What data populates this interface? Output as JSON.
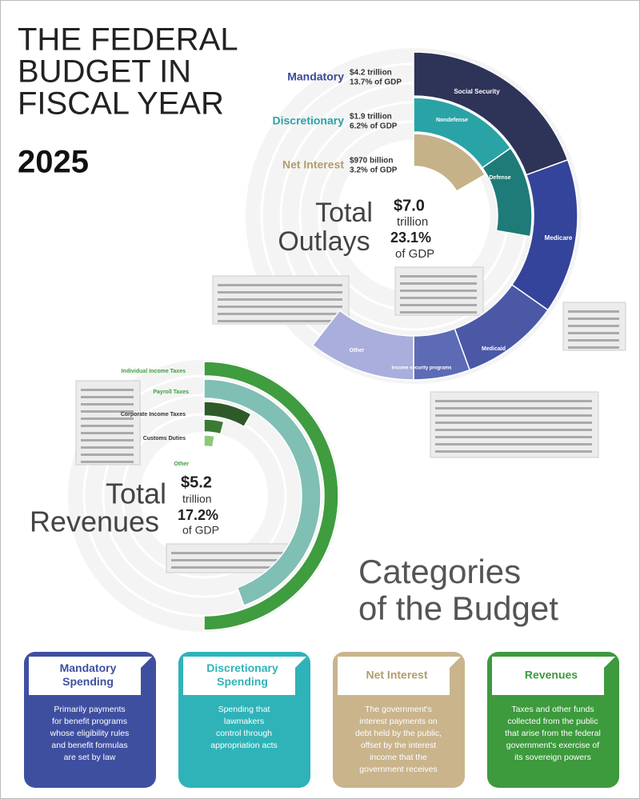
{
  "header": {
    "lines": [
      "THE FEDERAL",
      "BUDGET IN",
      "FISCAL YEAR"
    ],
    "year": "2025"
  },
  "outlays": {
    "legend": [
      {
        "name": "Mandatory",
        "amount": "$4.2 trillion",
        "gdp": "13.7% of GDP"
      },
      {
        "name": "Discretionary",
        "amount": "$1.9 trillion",
        "gdp": "6.2% of GDP"
      },
      {
        "name": "Net Interest",
        "amount": "$970 billion",
        "gdp": "3.2% of GDP"
      }
    ],
    "center": {
      "title": [
        "Total",
        "Outlays"
      ],
      "amount": "$7.0",
      "unit": "trillion",
      "gdp": "23.1%",
      "gdp_label": "of GDP"
    },
    "segments": [
      "Social Security",
      "Nondefense",
      "Defense",
      "Medicare",
      "Medicaid",
      "Income security programs",
      "Other"
    ]
  },
  "revenues": {
    "center": {
      "title": [
        "Total",
        "Revenues"
      ],
      "amount": "$5.2",
      "unit": "trillion",
      "gdp": "17.2%",
      "gdp_label": "of GDP"
    },
    "segments": [
      "Individual Income Taxes",
      "Payroll Taxes",
      "Corporate Income Taxes",
      "Customs Duties",
      "Other"
    ]
  },
  "categories": {
    "title": [
      "Categories",
      "of the Budget"
    ],
    "cards": [
      {
        "title": [
          "Mandatory",
          "Spending"
        ],
        "text": [
          "Primarily payments",
          "for benefit programs",
          "whose eligibility rules",
          "and benefit formulas",
          "are set by law"
        ]
      },
      {
        "title": [
          "Discretionary",
          "Spending"
        ],
        "text": [
          "Spending that",
          "lawmakers",
          "control through",
          "appropriation acts"
        ]
      },
      {
        "title": [
          "Net Interest"
        ],
        "text": [
          "The government's",
          "interest payments on",
          "debt held by the public,",
          "offset by the interest",
          "income that the",
          "government receives"
        ]
      },
      {
        "title": [
          "Revenues"
        ],
        "text": [
          "Taxes and other funds",
          "collected from the public",
          "that arise from the federal",
          "government's exercise of",
          "its sovereign powers"
        ]
      }
    ]
  }
}
